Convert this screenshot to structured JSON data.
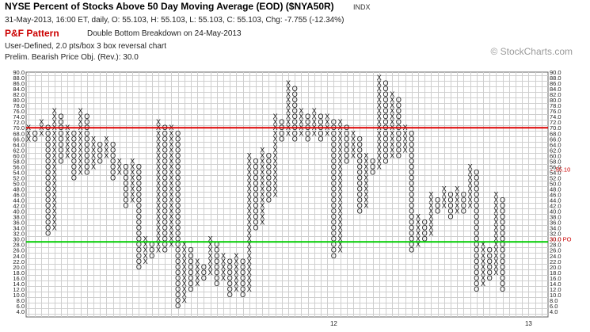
{
  "header": {
    "title": "NYSE Percent of Stocks Above 50 Day Moving Average (EOD) ($NYA50R)",
    "exchange": "INDX",
    "quote": "31-May-2013, 16:00 ET, daily, O: 55.103, H: 55.103, L: 55.103, C: 55.103, Chg: -7.755 (-12.34%)",
    "pattern_label": "P&F Pattern",
    "pattern_desc": "Double Bottom Breakdown on 24-May-2013",
    "settings": "User-Defined, 2.0 pts/box 3 box reversal chart",
    "objective": "Prelim. Bearish Price Obj. (Rev.): 30.0",
    "watermark": "© StockCharts.com"
  },
  "chart_data": {
    "type": "point-and-figure",
    "box_size": 2.0,
    "reversal": 3,
    "ylim": [
      4,
      90
    ],
    "y_ticks_left": [
      "90.0",
      "88.0",
      "86.0",
      "84.0",
      "82.0",
      "80.0",
      "78.0",
      "76.0",
      "74.0",
      "72.0",
      "70.0",
      "68.0",
      "66.0",
      "64.0",
      "62.0",
      "60.0",
      "58.0",
      "56.0",
      "54.0",
      "52.0",
      "50.0",
      "48.0",
      "46.0",
      "44.0",
      "42.0",
      "40.0",
      "38.0",
      "36.0",
      "34.0",
      "32.0",
      "30.0",
      "28.0",
      "26.0",
      "24.0",
      "22.0",
      "20.0",
      "18.0",
      "16.0",
      "14.0",
      "12.0",
      "10.0",
      "8.0",
      "6.0",
      "4.0"
    ],
    "y_ticks_right": [
      "90.0",
      "88.0",
      "86.0",
      "84.0",
      "82.0",
      "80.0",
      "78.0",
      "76.0",
      "74.0",
      "72.0",
      "70.0",
      "68.0",
      "66.0",
      "64.0",
      "62.0",
      "60.0",
      "58.0",
      "56.0",
      "54.0",
      "52.0",
      "50.0",
      "48.0",
      "46.0",
      "44.0",
      "42.0",
      "40.0",
      "38.0",
      "36.0",
      "34.0",
      "32.0",
      "30.0",
      "28.0",
      "26.0",
      "24.0",
      "22.0",
      "20.0",
      "18.0",
      "16.0",
      "14.0",
      "12.0",
      "10.0",
      "8.0",
      "6.0",
      "4.0"
    ],
    "x_labels": [
      {
        "col": 47,
        "text": "12"
      },
      {
        "col": 77,
        "text": "13"
      }
    ],
    "reference_lines": [
      {
        "y": 70,
        "color": "#dd0000"
      },
      {
        "y": 29,
        "color": "#00cc00"
      }
    ],
    "price_label": {
      "text": "55.10",
      "color": "#cc0000"
    },
    "objective_label": {
      "text": "30.0 PO",
      "color": "#cc0000"
    },
    "columns": [
      {
        "type": "X",
        "low": 66,
        "high": 70
      },
      {
        "type": "O",
        "low": 66,
        "high": 68
      },
      {
        "type": "X",
        "low": 68,
        "high": 72
      },
      {
        "type": "O",
        "low": 32,
        "high": 70
      },
      {
        "type": "X",
        "low": 34,
        "high": 76
      },
      {
        "type": "O",
        "low": 58,
        "high": 74
      },
      {
        "type": "X",
        "low": 60,
        "high": 70
      },
      {
        "type": "O",
        "low": 52,
        "high": 68
      },
      {
        "type": "X",
        "low": 54,
        "high": 76
      },
      {
        "type": "O",
        "low": 54,
        "high": 74
      },
      {
        "type": "X",
        "low": 56,
        "high": 66
      },
      {
        "type": "O",
        "low": 58,
        "high": 64
      },
      {
        "type": "X",
        "low": 60,
        "high": 66
      },
      {
        "type": "O",
        "low": 52,
        "high": 64
      },
      {
        "type": "X",
        "low": 54,
        "high": 58
      },
      {
        "type": "O",
        "low": 42,
        "high": 56
      },
      {
        "type": "X",
        "low": 44,
        "high": 58
      },
      {
        "type": "O",
        "low": 20,
        "high": 56
      },
      {
        "type": "X",
        "low": 22,
        "high": 30
      },
      {
        "type": "O",
        "low": 24,
        "high": 28
      },
      {
        "type": "X",
        "low": 26,
        "high": 72
      },
      {
        "type": "O",
        "low": 26,
        "high": 70
      },
      {
        "type": "X",
        "low": 28,
        "high": 70
      },
      {
        "type": "O",
        "low": 6,
        "high": 68
      },
      {
        "type": "X",
        "low": 8,
        "high": 28
      },
      {
        "type": "O",
        "low": 12,
        "high": 26
      },
      {
        "type": "X",
        "low": 14,
        "high": 22
      },
      {
        "type": "O",
        "low": 16,
        "high": 20
      },
      {
        "type": "X",
        "low": 18,
        "high": 30
      },
      {
        "type": "O",
        "low": 14,
        "high": 28
      },
      {
        "type": "X",
        "low": 16,
        "high": 24
      },
      {
        "type": "O",
        "low": 10,
        "high": 22
      },
      {
        "type": "X",
        "low": 12,
        "high": 24
      },
      {
        "type": "O",
        "low": 10,
        "high": 22
      },
      {
        "type": "X",
        "low": 12,
        "high": 60
      },
      {
        "type": "O",
        "low": 34,
        "high": 58
      },
      {
        "type": "X",
        "low": 36,
        "high": 62
      },
      {
        "type": "O",
        "low": 44,
        "high": 60
      },
      {
        "type": "X",
        "low": 46,
        "high": 74
      },
      {
        "type": "O",
        "low": 66,
        "high": 72
      },
      {
        "type": "X",
        "low": 68,
        "high": 86
      },
      {
        "type": "O",
        "low": 66,
        "high": 84
      },
      {
        "type": "X",
        "low": 68,
        "high": 76
      },
      {
        "type": "O",
        "low": 66,
        "high": 74
      },
      {
        "type": "X",
        "low": 68,
        "high": 76
      },
      {
        "type": "O",
        "low": 66,
        "high": 74
      },
      {
        "type": "X",
        "low": 68,
        "high": 74
      },
      {
        "type": "O",
        "low": 24,
        "high": 72
      },
      {
        "type": "X",
        "low": 26,
        "high": 72
      },
      {
        "type": "O",
        "low": 58,
        "high": 70
      },
      {
        "type": "X",
        "low": 60,
        "high": 68
      },
      {
        "type": "O",
        "low": 40,
        "high": 66
      },
      {
        "type": "X",
        "low": 42,
        "high": 60
      },
      {
        "type": "O",
        "low": 54,
        "high": 58
      },
      {
        "type": "X",
        "low": 56,
        "high": 88
      },
      {
        "type": "O",
        "low": 58,
        "high": 86
      },
      {
        "type": "X",
        "low": 60,
        "high": 82
      },
      {
        "type": "O",
        "low": 60,
        "high": 80
      },
      {
        "type": "X",
        "low": 62,
        "high": 70
      },
      {
        "type": "O",
        "low": 26,
        "high": 68
      },
      {
        "type": "X",
        "low": 28,
        "high": 38
      },
      {
        "type": "O",
        "low": 30,
        "high": 36
      },
      {
        "type": "X",
        "low": 32,
        "high": 46
      },
      {
        "type": "O",
        "low": 40,
        "high": 44
      },
      {
        "type": "X",
        "low": 42,
        "high": 48
      },
      {
        "type": "O",
        "low": 38,
        "high": 46
      },
      {
        "type": "X",
        "low": 40,
        "high": 48
      },
      {
        "type": "O",
        "low": 40,
        "high": 46
      },
      {
        "type": "X",
        "low": 42,
        "high": 56
      },
      {
        "type": "O",
        "low": 12,
        "high": 54
      },
      {
        "type": "X",
        "low": 14,
        "high": 28
      },
      {
        "type": "O",
        "low": 16,
        "high": 26
      },
      {
        "type": "X",
        "low": 18,
        "high": 46
      },
      {
        "type": "O",
        "low": 12,
        "high": 44
      }
    ]
  }
}
